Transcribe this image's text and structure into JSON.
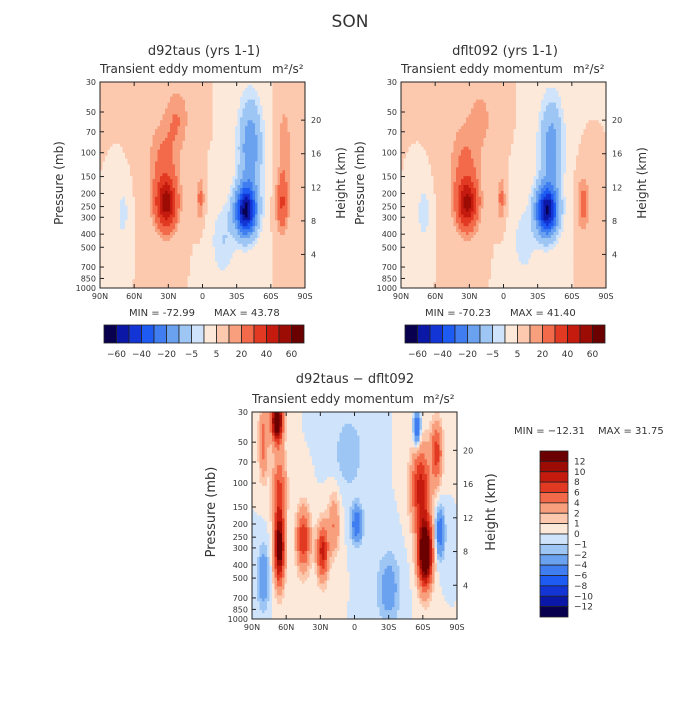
{
  "page_title": "SON",
  "chart_data": [
    {
      "type": "heatmap",
      "id": "p1",
      "title": "d92taus (yrs 1-1)",
      "subtitle": "Transient eddy momentum",
      "units": "m²/s²",
      "xlabel": "",
      "ylabel": "Pressure (mb)",
      "y2label": "Height (km)",
      "x_ticks": [
        "90N",
        "60N",
        "30N",
        "0",
        "30S",
        "60S",
        "90S"
      ],
      "y_ticks": [
        "30",
        "50",
        "70",
        "100",
        "150",
        "200",
        "250",
        "300",
        "400",
        "500",
        "700",
        "850",
        "1000"
      ],
      "y_ticks_values": [
        30,
        50,
        70,
        100,
        150,
        200,
        250,
        300,
        400,
        500,
        700,
        850,
        1000
      ],
      "y2_ticks": [
        "4",
        "8",
        "12",
        "16",
        "20"
      ],
      "y2_values": [
        4,
        8,
        12,
        16,
        20
      ],
      "xlim": [
        90,
        -90
      ],
      "ylim": [
        1000,
        30
      ],
      "min_label": "MIN = -72.99",
      "max_label": "MAX =  43.78",
      "min": -72.99,
      "max": 43.78,
      "blobs": [
        {
          "lat": 32,
          "p": 240,
          "amp": 42,
          "wlat": 9,
          "wlp": 0.42
        },
        {
          "lat": 34,
          "p": 120,
          "amp": 12,
          "wlat": 13,
          "wlp": 0.7
        },
        {
          "lat": 22,
          "p": 55,
          "amp": 9,
          "wlat": 10,
          "wlp": 0.5
        },
        {
          "lat": 2,
          "p": 220,
          "amp": 12,
          "wlat": 3.5,
          "wlp": 0.35
        },
        {
          "lat": -70,
          "p": 240,
          "amp": 20,
          "wlat": 5,
          "wlp": 0.45
        },
        {
          "lat": -72,
          "p": 90,
          "amp": 8,
          "wlat": 6,
          "wlp": 0.8
        },
        {
          "lat": -38,
          "p": 270,
          "amp": -70,
          "wlat": 9.5,
          "wlp": 0.42
        },
        {
          "lat": -42,
          "p": 90,
          "amp": -28,
          "wlat": 10,
          "wlp": 0.8
        },
        {
          "lat": -18,
          "p": 450,
          "amp": -10,
          "wlat": 10,
          "wlp": 0.6
        },
        {
          "lat": 70,
          "p": 280,
          "amp": -8,
          "wlat": 5,
          "wlp": 0.4
        }
      ]
    },
    {
      "type": "heatmap",
      "id": "p2",
      "title": "dflt092 (yrs 1-1)",
      "subtitle": "Transient eddy momentum",
      "units": "m²/s²",
      "xlabel": "",
      "ylabel": "Pressure (mb)",
      "y2label": "Height (km)",
      "x_ticks": [
        "90N",
        "60N",
        "30N",
        "0",
        "30S",
        "60S",
        "90S"
      ],
      "y_ticks": [
        "30",
        "50",
        "70",
        "100",
        "150",
        "200",
        "250",
        "300",
        "400",
        "500",
        "700",
        "850",
        "1000"
      ],
      "y_ticks_values": [
        30,
        50,
        70,
        100,
        150,
        200,
        250,
        300,
        400,
        500,
        700,
        850,
        1000
      ],
      "y2_ticks": [
        "4",
        "8",
        "12",
        "16",
        "20"
      ],
      "y2_values": [
        4,
        8,
        12,
        16,
        20
      ],
      "xlim": [
        90,
        -90
      ],
      "ylim": [
        1000,
        30
      ],
      "min_label": "MIN = -70.23",
      "max_label": "MAX =  41.40",
      "min": -70.23,
      "max": 41.4,
      "blobs": [
        {
          "lat": 32,
          "p": 240,
          "amp": 40,
          "wlat": 9,
          "wlp": 0.42
        },
        {
          "lat": 34,
          "p": 120,
          "amp": 11,
          "wlat": 13,
          "wlp": 0.7
        },
        {
          "lat": 20,
          "p": 55,
          "amp": 7,
          "wlat": 10,
          "wlp": 0.5
        },
        {
          "lat": 2,
          "p": 220,
          "amp": 12,
          "wlat": 3.5,
          "wlp": 0.35
        },
        {
          "lat": -70,
          "p": 240,
          "amp": 14,
          "wlat": 5,
          "wlp": 0.45
        },
        {
          "lat": -38,
          "p": 270,
          "amp": -68,
          "wlat": 9.5,
          "wlp": 0.42
        },
        {
          "lat": -42,
          "p": 90,
          "amp": -25,
          "wlat": 10,
          "wlp": 0.8
        },
        {
          "lat": -18,
          "p": 450,
          "amp": -8,
          "wlat": 10,
          "wlp": 0.6
        },
        {
          "lat": 70,
          "p": 280,
          "amp": -10,
          "wlat": 5,
          "wlp": 0.4
        }
      ]
    },
    {
      "type": "heatmap",
      "id": "p3",
      "title": "d92taus − dflt092",
      "subtitle": "Transient eddy momentum",
      "units": "m²/s²",
      "xlabel": "",
      "ylabel": "Pressure (mb)",
      "y2label": "Height (km)",
      "x_ticks": [
        "90N",
        "60N",
        "30N",
        "0",
        "30S",
        "60S",
        "90S"
      ],
      "y_ticks": [
        "30",
        "50",
        "70",
        "100",
        "150",
        "200",
        "250",
        "300",
        "400",
        "500",
        "700",
        "850",
        "1000"
      ],
      "y_ticks_values": [
        30,
        50,
        70,
        100,
        150,
        200,
        250,
        300,
        400,
        500,
        700,
        850,
        1000
      ],
      "y2_ticks": [
        "4",
        "8",
        "12",
        "16",
        "20"
      ],
      "y2_values": [
        4,
        8,
        12,
        16,
        20
      ],
      "xlim": [
        90,
        -90
      ],
      "ylim": [
        1000,
        30
      ],
      "min_label": "MIN = −12.31",
      "max_label": "MAX =  31.75",
      "min": -12.31,
      "max": 31.75,
      "blobs": [
        {
          "lat": 68,
          "p": 35,
          "amp": 16,
          "wlat": 5,
          "wlp": 0.35
        },
        {
          "lat": 66,
          "p": 300,
          "amp": 14,
          "wlat": 4.5,
          "wlp": 0.6
        },
        {
          "lat": 66,
          "p": 110,
          "amp": 6,
          "wlat": 6,
          "wlp": 0.6
        },
        {
          "lat": 45,
          "p": 260,
          "amp": 8,
          "wlat": 6,
          "wlp": 0.5
        },
        {
          "lat": 28,
          "p": 320,
          "amp": 9,
          "wlat": 5,
          "wlp": 0.45
        },
        {
          "lat": 18,
          "p": 200,
          "amp": 4,
          "wlat": 5,
          "wlp": 0.5
        },
        {
          "lat": -62,
          "p": 330,
          "amp": 18,
          "wlat": 6,
          "wlp": 0.55
        },
        {
          "lat": -58,
          "p": 110,
          "amp": 9,
          "wlat": 8,
          "wlp": 0.7
        },
        {
          "lat": -72,
          "p": 60,
          "amp": 7,
          "wlat": 5,
          "wlp": 0.5
        },
        {
          "lat": 80,
          "p": 50,
          "amp": 5,
          "wlat": 4,
          "wlp": 0.6
        },
        {
          "lat": -55,
          "p": 40,
          "amp": -7,
          "wlat": 3,
          "wlp": 0.3
        },
        {
          "lat": -2,
          "p": 200,
          "amp": -6,
          "wlat": 5,
          "wlp": 0.3
        },
        {
          "lat": -75,
          "p": 230,
          "amp": -6,
          "wlat": 4,
          "wlp": 0.4
        },
        {
          "lat": 80,
          "p": 500,
          "amp": -4,
          "wlat": 5,
          "wlp": 0.5
        },
        {
          "lat": -30,
          "p": 600,
          "amp": -3,
          "wlat": 10,
          "wlp": 0.6
        },
        {
          "lat": 5,
          "p": 60,
          "amp": -2,
          "wlat": 12,
          "wlp": 0.6
        }
      ],
      "colorbar_labels": [
        "12",
        "10",
        "8",
        "6",
        "4",
        "2",
        "1",
        "0",
        "−1",
        "−2",
        "−4",
        "−6",
        "−8",
        "−10",
        "−12"
      ]
    }
  ],
  "colorbar_top": {
    "labels": [
      "−60",
      "−40",
      "−20",
      "−5",
      "5",
      "20",
      "40",
      "60"
    ],
    "levels": [
      -70,
      -60,
      -50,
      -40,
      -30,
      -20,
      -10,
      -5,
      0,
      5,
      10,
      20,
      30,
      40,
      50,
      60
    ],
    "colors": [
      "#08004f",
      "#0b17a6",
      "#1335d6",
      "#1d5bf2",
      "#3f7df0",
      "#6aa2ef",
      "#9ec6f5",
      "#cfe4fb",
      "#fde9da",
      "#fcc8ae",
      "#f89f7e",
      "#f26a4a",
      "#e23a22",
      "#c51a0e",
      "#9c0c05",
      "#6b0000"
    ]
  },
  "colorbar_diff": {
    "levels": [
      -12,
      -10,
      -8,
      -6,
      -4,
      -2,
      -1,
      0,
      1,
      2,
      4,
      6,
      8,
      10,
      12
    ],
    "colors": [
      "#08004f",
      "#0b17a6",
      "#1335d6",
      "#1d5bf2",
      "#3f7df0",
      "#6aa2ef",
      "#9ec6f5",
      "#cfe4fb",
      "#fde9da",
      "#fcc8ae",
      "#f89f7e",
      "#f26a4a",
      "#e23a22",
      "#c51a0e",
      "#9c0c05",
      "#6b0000"
    ]
  }
}
